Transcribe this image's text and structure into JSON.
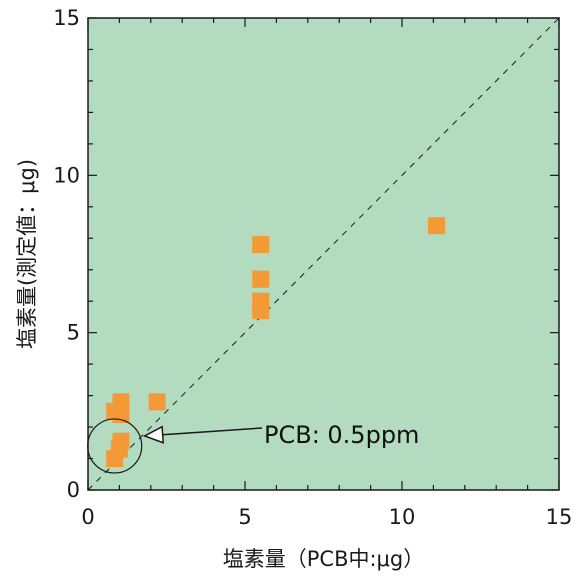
{
  "chart_data": {
    "type": "scatter",
    "title": "",
    "xlabel": "塩素量（PCB中:μg）",
    "ylabel": "塩素量(測定値：μg)",
    "xlim": [
      0,
      15
    ],
    "ylim": [
      0,
      15
    ],
    "xticks": [
      0,
      5,
      10,
      15
    ],
    "yticks": [
      0,
      5,
      10,
      15
    ],
    "xtick_labels": [
      "0",
      "5",
      "10",
      "15"
    ],
    "ytick_labels": [
      "0",
      "5",
      "10",
      "15"
    ],
    "grid": false,
    "reference_line": {
      "type": "y=x",
      "style": "dashed"
    },
    "series": [
      {
        "marker": "square",
        "points": [
          {
            "x": 0.85,
            "y": 1.0
          },
          {
            "x": 1.0,
            "y": 1.3
          },
          {
            "x": 1.05,
            "y": 1.55
          },
          {
            "x": 0.85,
            "y": 2.5
          },
          {
            "x": 1.05,
            "y": 2.4
          },
          {
            "x": 1.05,
            "y": 2.8
          },
          {
            "x": 2.2,
            "y": 2.8
          },
          {
            "x": 5.5,
            "y": 5.7
          },
          {
            "x": 5.5,
            "y": 6.0
          },
          {
            "x": 5.5,
            "y": 6.7
          },
          {
            "x": 5.5,
            "y": 7.8
          },
          {
            "x": 11.1,
            "y": 8.4
          }
        ]
      }
    ],
    "annotations": [
      {
        "text": "PCB: 0.5ppm",
        "target": {
          "x": 0.85,
          "y": 1.4
        }
      }
    ],
    "colors": {
      "plot_background": "#b3dbbf",
      "marker": "#f39a36",
      "axis": "#1a1a1a"
    }
  }
}
